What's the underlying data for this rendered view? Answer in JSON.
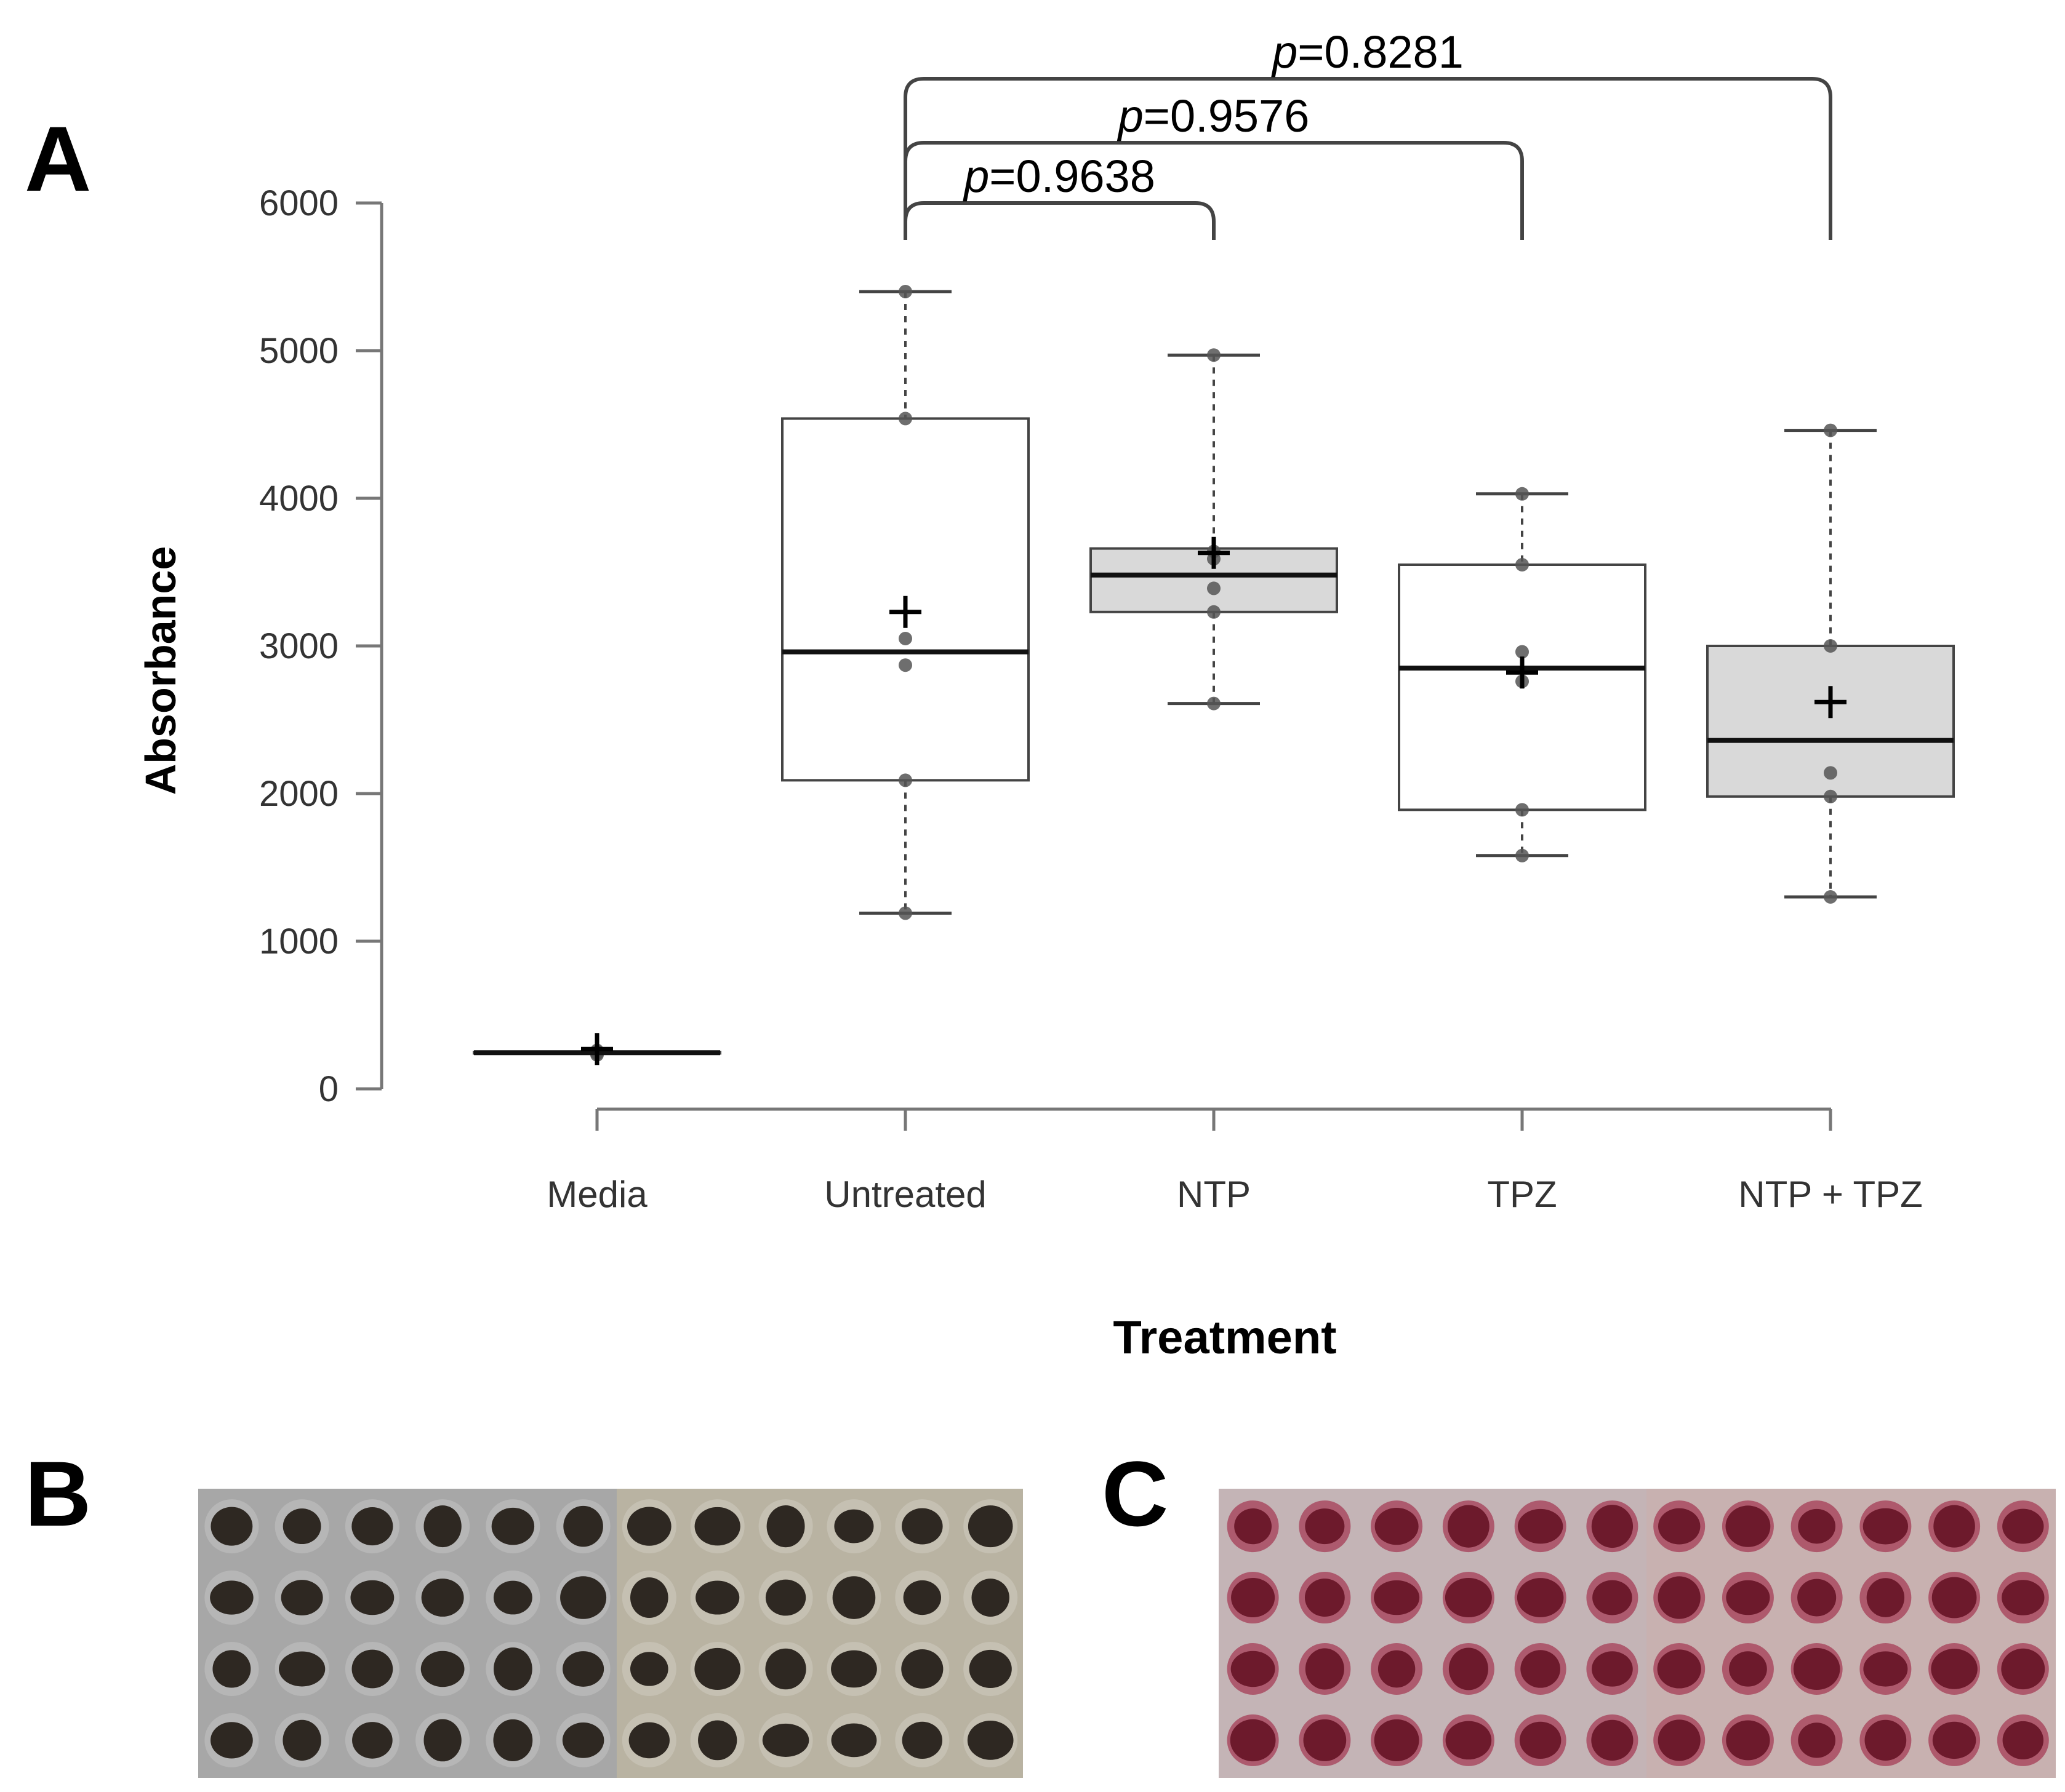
{
  "panels": {
    "a_label": "A",
    "b_label": "B",
    "c_label": "C"
  },
  "chart_data": {
    "type": "box",
    "xlabel": "Treatment",
    "ylabel": "Absorbance",
    "ylim": [
      0,
      6000
    ],
    "yticks": [
      0,
      1000,
      2000,
      3000,
      4000,
      5000,
      6000
    ],
    "categories": [
      "Media",
      "Untreated",
      "NTP",
      "TPZ",
      "NTP + TPZ"
    ],
    "boxes": [
      {
        "category": "Media",
        "min": 240,
        "q1": 240,
        "median": 245,
        "q3": 250,
        "max": 250,
        "mean": 270,
        "points": [
          230,
          240,
          250,
          260
        ],
        "fill": "#ffffff"
      },
      {
        "category": "Untreated",
        "min": 1190,
        "q1": 2090,
        "median": 2960,
        "q3": 4540,
        "max": 5400,
        "mean": 3230,
        "points": [
          5400,
          4540,
          3050,
          2870,
          2090,
          1190
        ],
        "fill": "#ffffff"
      },
      {
        "category": "NTP",
        "min": 2610,
        "q1": 3230,
        "median": 3480,
        "q3": 3660,
        "max": 4970,
        "mean": 3630,
        "points": [
          4970,
          3640,
          3590,
          3390,
          3230,
          2610
        ],
        "fill": "#d9d9d9"
      },
      {
        "category": "TPZ",
        "min": 1580,
        "q1": 1890,
        "median": 2850,
        "q3": 3550,
        "max": 4030,
        "mean": 2820,
        "points": [
          4030,
          3550,
          2960,
          2760,
          1890,
          1580
        ],
        "fill": "#ffffff"
      },
      {
        "category": "NTP + TPZ",
        "min": 1300,
        "q1": 1980,
        "median": 2360,
        "q3": 3000,
        "max": 4460,
        "mean": 2620,
        "points": [
          4460,
          3000,
          2140,
          1980,
          1300
        ],
        "fill": "#d9d9d9"
      }
    ],
    "comparisons": [
      {
        "from": "Untreated",
        "to": "NTP",
        "p_prefix": "p",
        "p_value": "=0.9638"
      },
      {
        "from": "Untreated",
        "to": "TPZ",
        "p_prefix": "p",
        "p_value": "=0.9576"
      },
      {
        "from": "Untreated",
        "to": "NTP + TPZ",
        "p_prefix": "p",
        "p_value": "=0.8281"
      }
    ]
  },
  "photos": {
    "b_left_background": "#a7a7a7",
    "b_right_background": "#b9b3a2",
    "b_well_color": "#2e2822",
    "c_left_background": "#c4b4b6",
    "c_right_background": "#c8b1b0",
    "c_well_color": "#6d1a2c",
    "c_rim_color": "#a53c55"
  }
}
